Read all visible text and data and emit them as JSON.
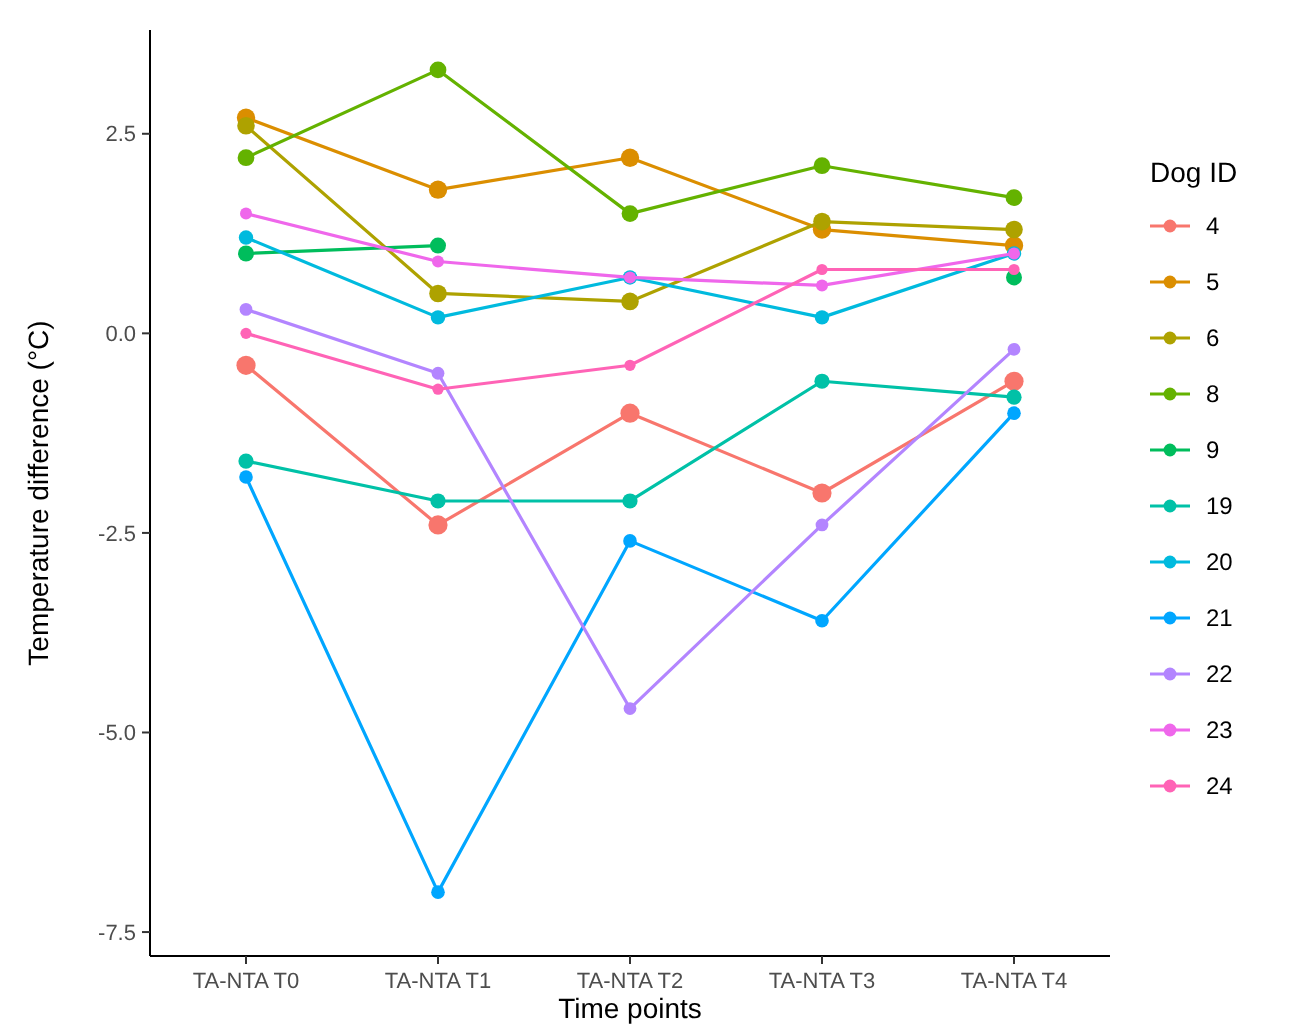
{
  "chart_data": {
    "type": "line",
    "xlabel": "Time points",
    "ylabel": "Temperature difference (°C)",
    "legend_title": "Dog ID",
    "categories": [
      "TA-NTA T0",
      "TA-NTA T1",
      "TA-NTA T2",
      "TA-NTA T3",
      "TA-NTA T4"
    ],
    "ylim": [
      -7.8,
      3.8
    ],
    "yticks": [
      {
        "value": 2.5,
        "label": "2.5"
      },
      {
        "value": 0,
        "label": "0.0"
      },
      {
        "value": -2.5,
        "label": "-2.5"
      },
      {
        "value": -5,
        "label": "-5.0"
      },
      {
        "value": -7.5,
        "label": "-7.5"
      }
    ],
    "grid": false,
    "legend": "right",
    "marker": "circle",
    "line_style": "solid",
    "series": [
      {
        "name": "4",
        "color": "#f8766d",
        "values": [
          -0.4,
          -2.4,
          -1.0,
          -2.0,
          -0.6
        ]
      },
      {
        "name": "5",
        "color": "#db8e00",
        "values": [
          2.7,
          1.8,
          2.2,
          1.3,
          1.1
        ]
      },
      {
        "name": "6",
        "color": "#aea200",
        "values": [
          2.6,
          0.5,
          0.4,
          1.4,
          1.3
        ]
      },
      {
        "name": "8",
        "color": "#64b200",
        "values": [
          2.2,
          3.3,
          1.5,
          2.1,
          1.7
        ]
      },
      {
        "name": "9",
        "color": "#00bd5c",
        "values": [
          1.0,
          1.1,
          null,
          null,
          0.7
        ]
      },
      {
        "name": "19",
        "color": "#00c1a7",
        "values": [
          -1.6,
          -2.1,
          -2.1,
          -0.6,
          -0.8
        ]
      },
      {
        "name": "20",
        "color": "#00bade",
        "values": [
          1.2,
          0.2,
          0.7,
          0.2,
          1.0
        ]
      },
      {
        "name": "21",
        "color": "#00a6ff",
        "values": [
          -1.8,
          -7.0,
          -2.6,
          -3.6,
          -1.0
        ]
      },
      {
        "name": "22",
        "color": "#b385ff",
        "values": [
          0.3,
          -0.5,
          -4.7,
          -2.4,
          -0.2
        ]
      },
      {
        "name": "23",
        "color": "#ef67eb",
        "values": [
          1.5,
          0.9,
          0.7,
          0.6,
          1.0
        ]
      },
      {
        "name": "24",
        "color": "#ff63b6",
        "values": [
          0.0,
          -0.7,
          -0.4,
          0.8,
          0.8
        ]
      }
    ]
  }
}
